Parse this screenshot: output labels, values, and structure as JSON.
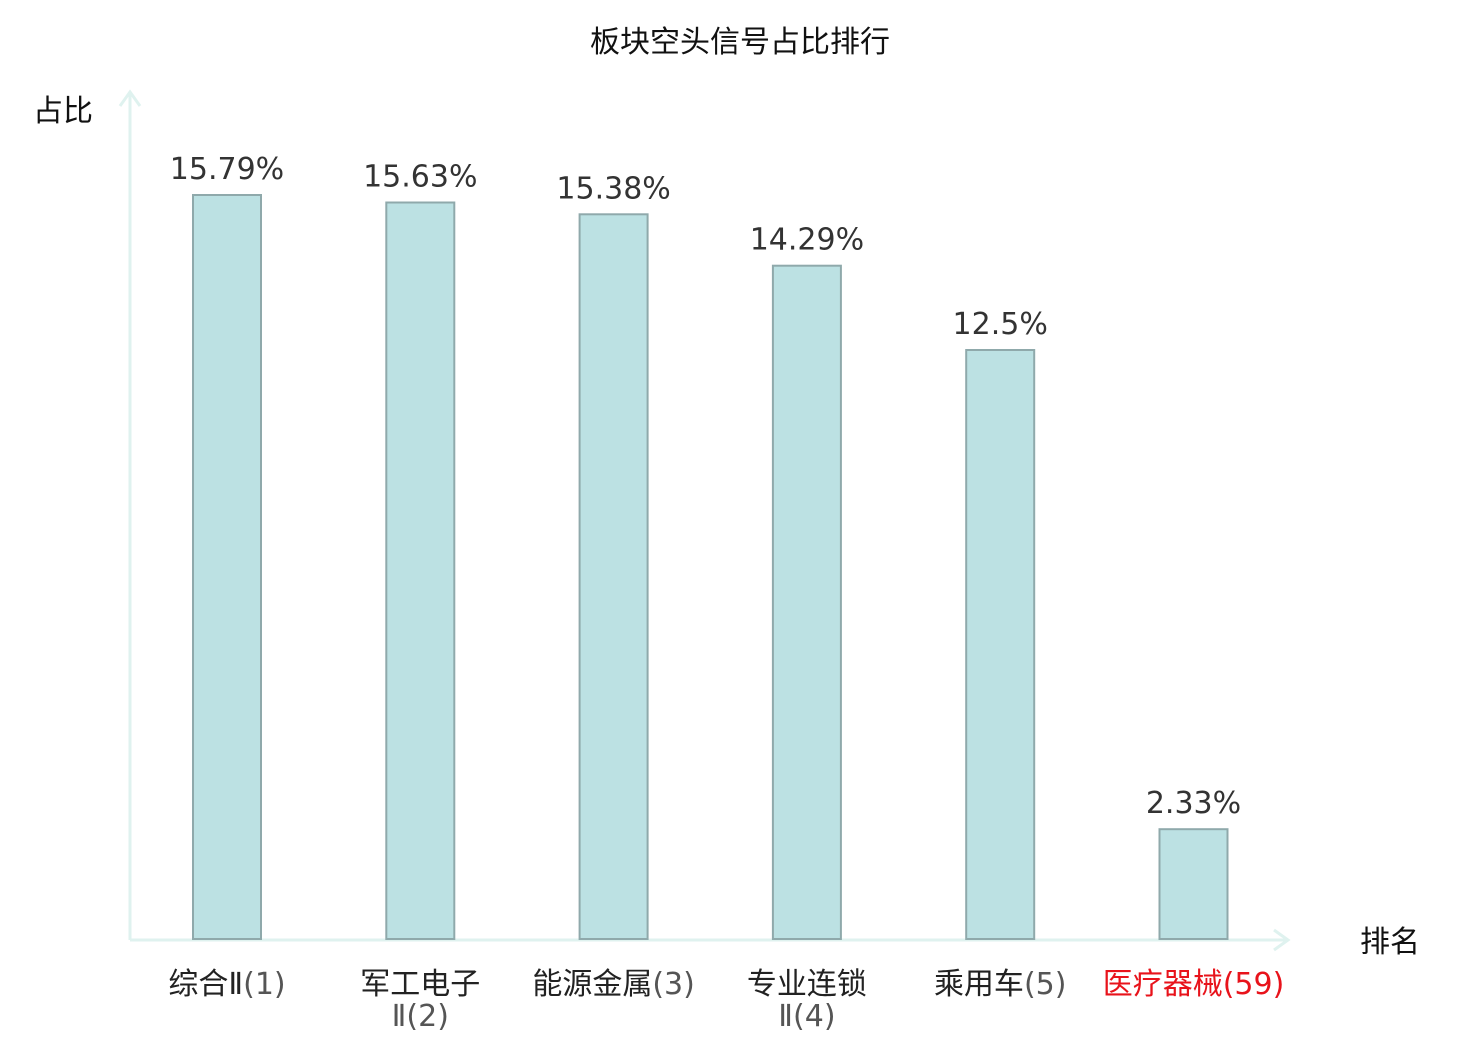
{
  "chart_data": {
    "type": "bar",
    "title": "板块空头信号占比排行",
    "xlabel": "排名",
    "ylabel": "占比",
    "grid": false,
    "legend": "none",
    "ylim": [
      0,
      16.5
    ],
    "categories": [
      {
        "name": "综合Ⅱ",
        "rank": "(1)",
        "value": 15.79,
        "label": "15.79%",
        "highlight": false
      },
      {
        "name": "军工电子",
        "name2": "Ⅱ",
        "rank": "(2)",
        "value": 15.63,
        "label": "15.63%",
        "highlight": false
      },
      {
        "name": "能源金属",
        "rank": "(3)",
        "value": 15.38,
        "label": "15.38%",
        "highlight": false
      },
      {
        "name": "专业连锁",
        "name2": "Ⅱ",
        "rank": "(4)",
        "value": 14.29,
        "label": "14.29%",
        "highlight": false
      },
      {
        "name": "乘用车",
        "rank": "(5)",
        "value": 12.5,
        "label": "12.5%",
        "highlight": false
      },
      {
        "name": "医疗器械",
        "rank": "(59)",
        "value": 2.33,
        "label": "2.33%",
        "highlight": true
      }
    ],
    "colors": {
      "bar_fill": "#bce1e3",
      "bar_stroke": "#8fa9ab",
      "axis": "#dff2ef",
      "highlight": "#e8131b"
    }
  }
}
